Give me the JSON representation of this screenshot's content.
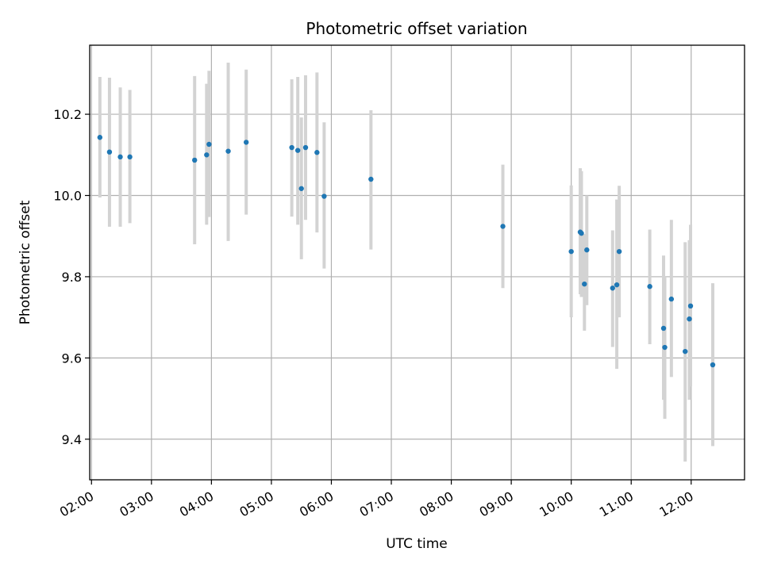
{
  "chart_data": {
    "type": "scatter",
    "title": "Photometric offset variation",
    "xlabel": "UTC time",
    "ylabel": "Photometric offset",
    "x_unit": "hours UTC",
    "xlim": [
      1.97,
      12.89
    ],
    "ylim": [
      9.3,
      10.37
    ],
    "x_ticks": [
      {
        "value": 2,
        "label": "02:00"
      },
      {
        "value": 3,
        "label": "03:00"
      },
      {
        "value": 4,
        "label": "04:00"
      },
      {
        "value": 5,
        "label": "05:00"
      },
      {
        "value": 6,
        "label": "06:00"
      },
      {
        "value": 7,
        "label": "07:00"
      },
      {
        "value": 8,
        "label": "08:00"
      },
      {
        "value": 9,
        "label": "09:00"
      },
      {
        "value": 10,
        "label": "10:00"
      },
      {
        "value": 11,
        "label": "11:00"
      },
      {
        "value": 12,
        "label": "12:00"
      }
    ],
    "y_ticks": [
      {
        "value": 9.4,
        "label": "9.4"
      },
      {
        "value": 9.6,
        "label": "9.6"
      },
      {
        "value": 9.8,
        "label": "9.8"
      },
      {
        "value": 10.0,
        "label": "10.0"
      },
      {
        "value": 10.2,
        "label": "10.2"
      }
    ],
    "grid": true,
    "x_tick_rotation_deg": 30,
    "colors": {
      "point": "#1f77b4",
      "errorbar": "#d3d3d3",
      "grid": "#b0b0b0"
    },
    "points": [
      {
        "x": 2.14,
        "y": 10.143,
        "lo": 9.995,
        "hi": 10.292
      },
      {
        "x": 2.3,
        "y": 10.107,
        "lo": 9.923,
        "hi": 10.29
      },
      {
        "x": 2.48,
        "y": 10.095,
        "lo": 9.923,
        "hi": 10.266
      },
      {
        "x": 2.64,
        "y": 10.095,
        "lo": 9.932,
        "hi": 10.26
      },
      {
        "x": 3.72,
        "y": 10.087,
        "lo": 9.88,
        "hi": 10.294
      },
      {
        "x": 3.92,
        "y": 10.1,
        "lo": 9.928,
        "hi": 10.275
      },
      {
        "x": 3.96,
        "y": 10.126,
        "lo": 9.947,
        "hi": 10.307
      },
      {
        "x": 4.28,
        "y": 10.109,
        "lo": 9.888,
        "hi": 10.327
      },
      {
        "x": 4.58,
        "y": 10.131,
        "lo": 9.953,
        "hi": 10.31
      },
      {
        "x": 5.34,
        "y": 10.118,
        "lo": 9.948,
        "hi": 10.286
      },
      {
        "x": 5.44,
        "y": 10.111,
        "lo": 9.928,
        "hi": 10.292
      },
      {
        "x": 5.5,
        "y": 10.017,
        "lo": 9.843,
        "hi": 10.192
      },
      {
        "x": 5.57,
        "y": 10.118,
        "lo": 9.94,
        "hi": 10.296
      },
      {
        "x": 5.76,
        "y": 10.106,
        "lo": 9.909,
        "hi": 10.303
      },
      {
        "x": 5.88,
        "y": 9.998,
        "lo": 9.82,
        "hi": 10.18
      },
      {
        "x": 6.66,
        "y": 10.04,
        "lo": 9.867,
        "hi": 10.21
      },
      {
        "x": 8.86,
        "y": 9.924,
        "lo": 9.772,
        "hi": 10.076
      },
      {
        "x": 10.0,
        "y": 9.862,
        "lo": 9.7,
        "hi": 10.025
      },
      {
        "x": 10.15,
        "y": 9.91,
        "lo": 9.757,
        "hi": 10.067
      },
      {
        "x": 10.17,
        "y": 9.907,
        "lo": 9.75,
        "hi": 10.06
      },
      {
        "x": 10.22,
        "y": 9.782,
        "lo": 9.667,
        "hi": 9.905
      },
      {
        "x": 10.26,
        "y": 9.866,
        "lo": 9.73,
        "hi": 10.0
      },
      {
        "x": 10.69,
        "y": 9.772,
        "lo": 9.627,
        "hi": 9.914
      },
      {
        "x": 10.76,
        "y": 9.78,
        "lo": 9.573,
        "hi": 9.99
      },
      {
        "x": 10.8,
        "y": 9.862,
        "lo": 9.7,
        "hi": 10.024
      },
      {
        "x": 11.31,
        "y": 9.776,
        "lo": 9.634,
        "hi": 9.916
      },
      {
        "x": 11.54,
        "y": 9.673,
        "lo": 9.497,
        "hi": 9.852
      },
      {
        "x": 11.56,
        "y": 9.626,
        "lo": 9.45,
        "hi": 9.8
      },
      {
        "x": 11.67,
        "y": 9.745,
        "lo": 9.553,
        "hi": 9.94
      },
      {
        "x": 11.9,
        "y": 9.616,
        "lo": 9.345,
        "hi": 9.885
      },
      {
        "x": 11.97,
        "y": 9.696,
        "lo": 9.497,
        "hi": 9.89
      },
      {
        "x": 11.99,
        "y": 9.728,
        "lo": 9.53,
        "hi": 9.928
      },
      {
        "x": 12.36,
        "y": 9.583,
        "lo": 9.383,
        "hi": 9.784
      }
    ]
  }
}
